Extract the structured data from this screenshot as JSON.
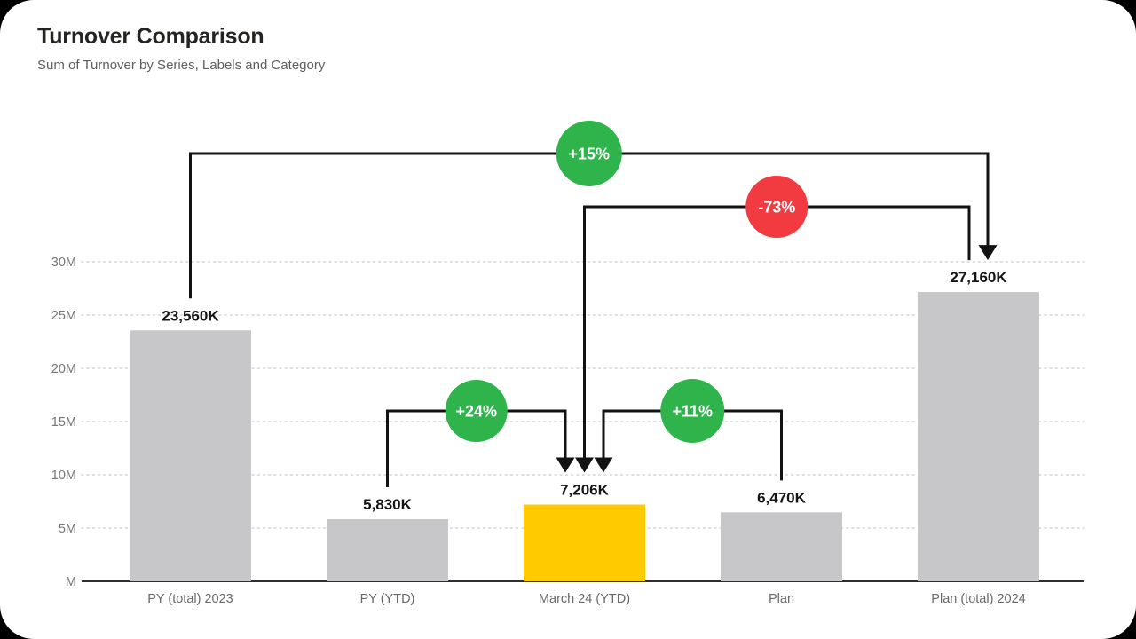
{
  "page": {
    "background_color": "#000000",
    "card_background_color": "#ffffff"
  },
  "header": {
    "title": "Turnover Comparison",
    "subtitle": "Sum of Turnover by Series, Labels and Category"
  },
  "chart_data": {
    "type": "bar",
    "title": "Turnover Comparison",
    "subtitle": "Sum of Turnover by Series, Labels and Category",
    "categories": [
      "PY (total) 2023",
      "PY (YTD)",
      "March 24 (YTD)",
      "Plan",
      "Plan (total) 2024"
    ],
    "values_thousands": [
      23560,
      5830,
      7206,
      6470,
      27160
    ],
    "value_labels": [
      "23,560K",
      "5,830K",
      "7,206K",
      "6,470K",
      "27,160K"
    ],
    "bar_colors": [
      "#C7C7CA",
      "#C7C7CA",
      "#FFCA00",
      "#C7C7CA",
      "#C7C7CA"
    ],
    "highlight_category": "March 24 (YTD)",
    "y_axis": {
      "tick_labels": [
        "M",
        "5M",
        "10M",
        "15M",
        "20M",
        "25M",
        "30M"
      ],
      "tick_values_millions": [
        0,
        5,
        10,
        15,
        20,
        25,
        30
      ],
      "range_millions": [
        0,
        30
      ],
      "grid_style": "dotted"
    },
    "annotations": [
      {
        "label": "+15%",
        "change_pct": 15,
        "from": "PY (total) 2023",
        "to": "Plan (total) 2024",
        "color": "#2FB44C",
        "text_color": "#ffffff"
      },
      {
        "label": "-73%",
        "change_pct": -73,
        "from": "Plan (total) 2024",
        "to": "March 24 (YTD)",
        "color": "#F23B40",
        "text_color": "#ffffff"
      },
      {
        "label": "+24%",
        "change_pct": 24,
        "from": "PY (YTD)",
        "to": "March 24 (YTD)",
        "color": "#2FB44C",
        "text_color": "#ffffff"
      },
      {
        "label": "+11%",
        "change_pct": 11,
        "from": "Plan",
        "to": "March 24 (YTD)",
        "color": "#2FB44C",
        "text_color": "#ffffff"
      }
    ],
    "colors": {
      "neutral_bar": "#C7C7CA",
      "highlight_bar": "#FFCA00",
      "positive_badge": "#2FB44C",
      "negative_badge": "#F23B40",
      "connector_line": "#121212",
      "gridline": "#d4d2d0",
      "axis_line": "#2e2e2e"
    }
  }
}
